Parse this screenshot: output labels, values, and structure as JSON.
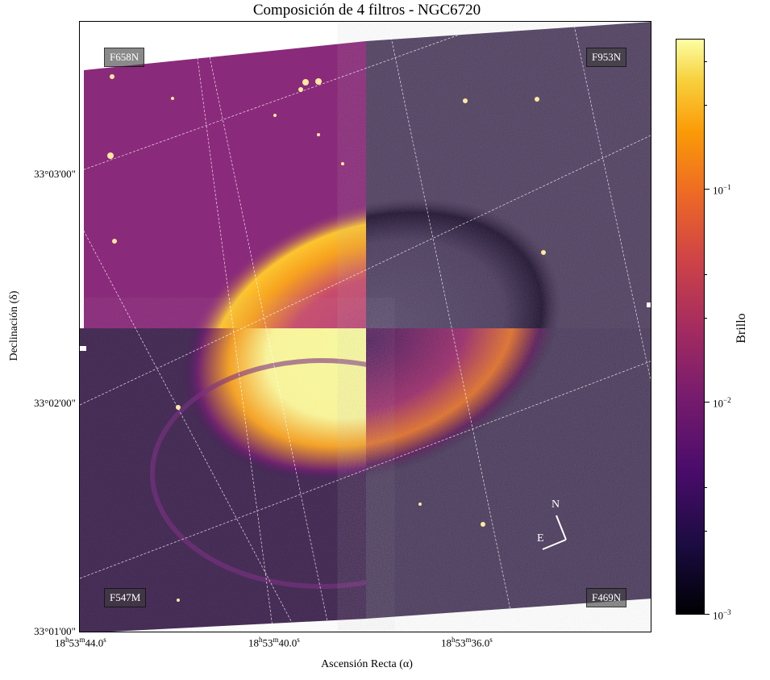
{
  "title": "Composición de 4 filtros - NGC6720",
  "filters": {
    "top_left": "F658N",
    "top_right": "F953N",
    "bottom_left": "F547M",
    "bottom_right": "F469N"
  },
  "axes": {
    "xlabel": "Ascensión Recta (α)",
    "ylabel": "Declinación (δ)",
    "y_ticks": [
      "33°03'00\"",
      "33°02'00\"",
      "33°01'00\""
    ],
    "x_ticks": [
      {
        "h": "18",
        "m": "53",
        "s": "44.0"
      },
      {
        "h": "18",
        "m": "53",
        "s": "40.0"
      },
      {
        "h": "18",
        "m": "53",
        "s": "36.0"
      }
    ]
  },
  "colorbar": {
    "label": "Brillo",
    "ticks": [
      {
        "base": "10",
        "exp": "−1"
      },
      {
        "base": "10",
        "exp": "−2"
      },
      {
        "base": "10",
        "exp": "−3"
      }
    ],
    "colormap": "inferno",
    "scale": "log"
  },
  "compass": {
    "north": "N",
    "east": "E"
  },
  "colors": {
    "bg_purple": "#8a2a7a",
    "noise_dark": "#3a2a4a",
    "nebula_bright": "#fbfd9e",
    "nebula_orange": "#f39a1e"
  }
}
